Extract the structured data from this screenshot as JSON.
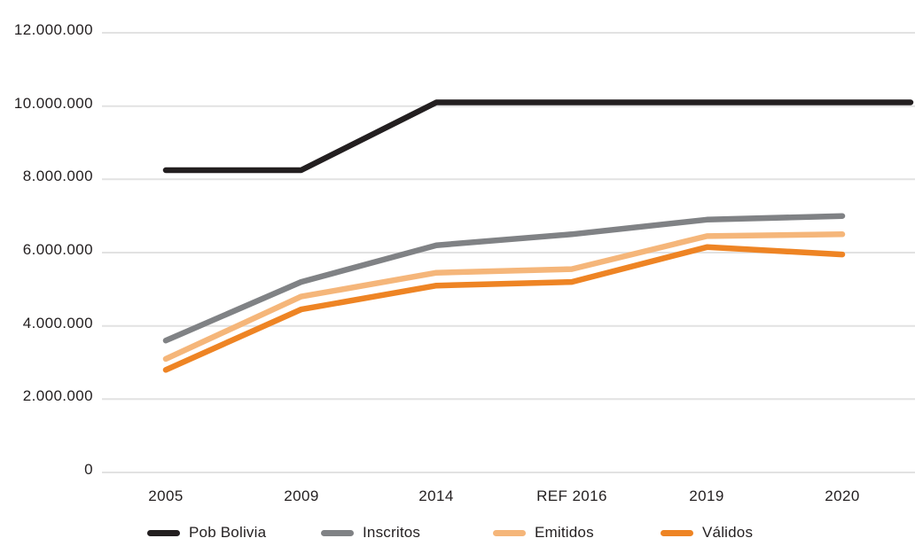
{
  "chart_data": {
    "type": "line",
    "title": "",
    "xlabel": "",
    "ylabel": "",
    "categories": [
      "2005",
      "2009",
      "2014",
      "REF 2016",
      "2019",
      "2020"
    ],
    "series": [
      {
        "name": "Pob Bolivia",
        "color": "#231f20",
        "values": [
          8250000,
          8250000,
          10100000,
          10100000,
          10100000,
          10100000
        ],
        "extends_to_right_edge": true
      },
      {
        "name": "Inscritos",
        "color": "#808285",
        "values": [
          3600000,
          5200000,
          6200000,
          6500000,
          6900000,
          7000000
        ],
        "extends_to_right_edge": false
      },
      {
        "name": "Emitidos",
        "color": "#f5b67a",
        "values": [
          3100000,
          4800000,
          5450000,
          5550000,
          6450000,
          6500000
        ],
        "extends_to_right_edge": false
      },
      {
        "name": "Válidos",
        "color": "#ee8424",
        "values": [
          2800000,
          4450000,
          5100000,
          5200000,
          6150000,
          5950000
        ],
        "extends_to_right_edge": false
      }
    ],
    "y_axis": {
      "min": 0,
      "max": 12000000,
      "tick_interval": 2000000,
      "tick_values": [
        0,
        2000000,
        4000000,
        6000000,
        8000000,
        10000000,
        12000000
      ],
      "tick_labels": [
        "0",
        "2.000.000",
        "4.000.000",
        "6.000.000",
        "8.000.000",
        "10.000.000",
        "12.000.000"
      ]
    },
    "grid": "horizontal",
    "gridline_color": "#e2e2e2",
    "legend_position": "bottom"
  }
}
